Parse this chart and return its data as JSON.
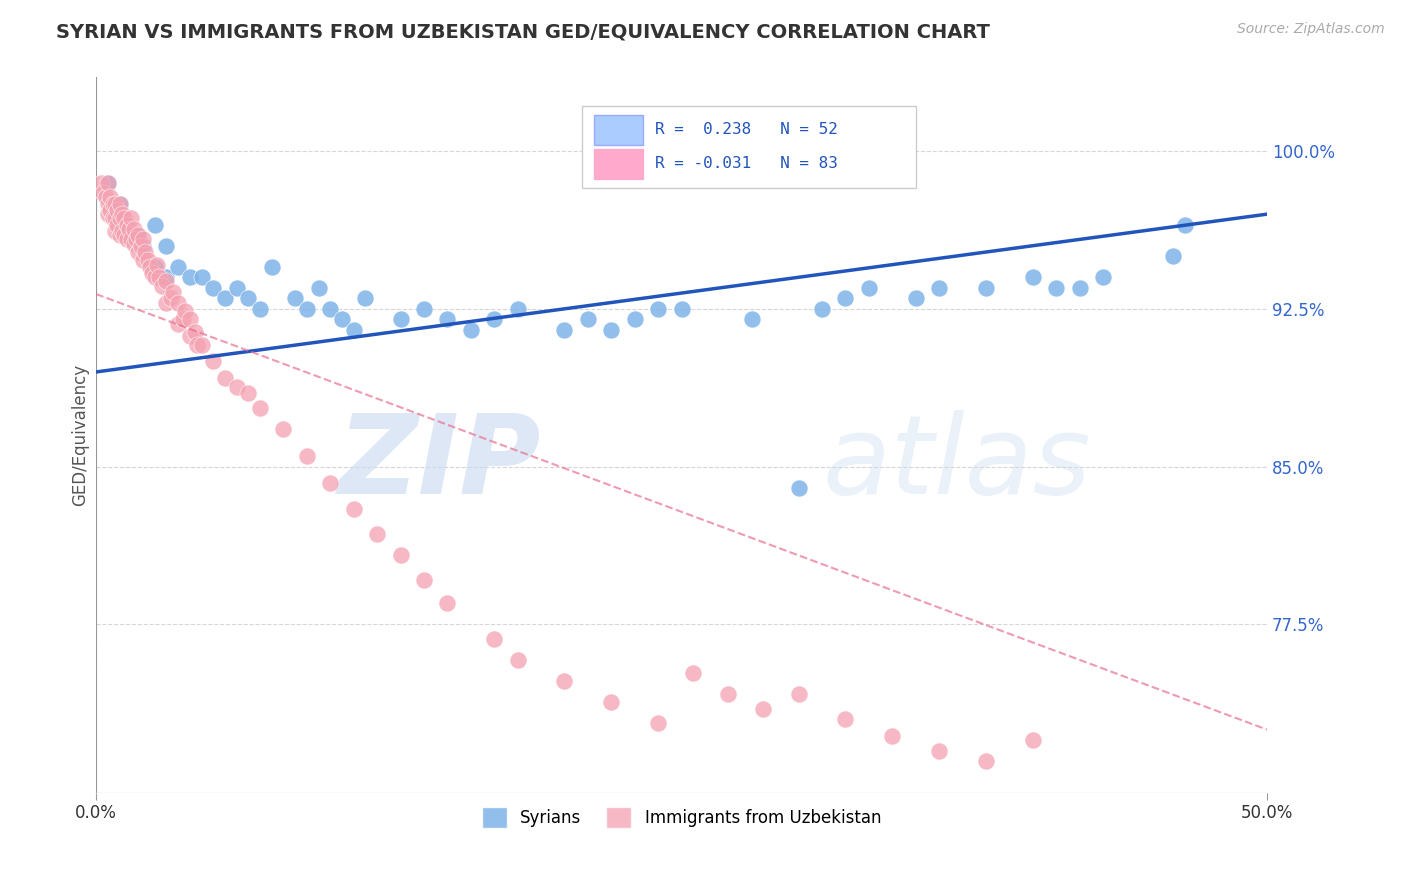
{
  "title": "SYRIAN VS IMMIGRANTS FROM UZBEKISTAN GED/EQUIVALENCY CORRELATION CHART",
  "source": "Source: ZipAtlas.com",
  "ylabel": "GED/Equivalency",
  "ytick_labels": [
    "100.0%",
    "92.5%",
    "85.0%",
    "77.5%"
  ],
  "ytick_values": [
    1.0,
    0.925,
    0.85,
    0.775
  ],
  "xmin": 0.0,
  "xmax": 0.5,
  "ymin": 0.695,
  "ymax": 1.035,
  "blue_color": "#7EB3E8",
  "pink_color": "#F4A0B0",
  "blue_line_color": "#2255BB",
  "pink_line_color": "#E87090",
  "blue_r": 0.238,
  "blue_n": 52,
  "pink_r": -0.031,
  "pink_n": 83,
  "blue_line_x0": 0.0,
  "blue_line_y0": 0.895,
  "blue_line_x1": 0.5,
  "blue_line_y1": 0.97,
  "pink_line_x0": 0.0,
  "pink_line_y0": 0.932,
  "pink_line_x1": 0.5,
  "pink_line_y1": 0.725,
  "blue_points_x": [
    0.005,
    0.01,
    0.012,
    0.015,
    0.018,
    0.02,
    0.025,
    0.025,
    0.03,
    0.03,
    0.035,
    0.04,
    0.045,
    0.05,
    0.055,
    0.06,
    0.065,
    0.07,
    0.075,
    0.085,
    0.09,
    0.095,
    0.1,
    0.105,
    0.11,
    0.115,
    0.13,
    0.14,
    0.15,
    0.16,
    0.17,
    0.18,
    0.2,
    0.21,
    0.22,
    0.23,
    0.24,
    0.25,
    0.28,
    0.3,
    0.31,
    0.32,
    0.33,
    0.35,
    0.36,
    0.38,
    0.4,
    0.41,
    0.42,
    0.43,
    0.46,
    0.465
  ],
  "blue_points_y": [
    0.985,
    0.975,
    0.965,
    0.96,
    0.96,
    0.955,
    0.965,
    0.945,
    0.955,
    0.94,
    0.945,
    0.94,
    0.94,
    0.935,
    0.93,
    0.935,
    0.93,
    0.925,
    0.945,
    0.93,
    0.925,
    0.935,
    0.925,
    0.92,
    0.915,
    0.93,
    0.92,
    0.925,
    0.92,
    0.915,
    0.92,
    0.925,
    0.915,
    0.92,
    0.915,
    0.92,
    0.925,
    0.925,
    0.92,
    0.84,
    0.925,
    0.93,
    0.935,
    0.93,
    0.935,
    0.935,
    0.94,
    0.935,
    0.935,
    0.94,
    0.95,
    0.965
  ],
  "pink_points_x": [
    0.002,
    0.003,
    0.004,
    0.005,
    0.005,
    0.005,
    0.006,
    0.006,
    0.007,
    0.007,
    0.008,
    0.008,
    0.008,
    0.009,
    0.009,
    0.01,
    0.01,
    0.01,
    0.011,
    0.011,
    0.012,
    0.012,
    0.013,
    0.013,
    0.014,
    0.015,
    0.015,
    0.016,
    0.016,
    0.017,
    0.018,
    0.018,
    0.019,
    0.02,
    0.02,
    0.021,
    0.022,
    0.023,
    0.024,
    0.025,
    0.026,
    0.027,
    0.028,
    0.03,
    0.03,
    0.032,
    0.033,
    0.035,
    0.035,
    0.037,
    0.038,
    0.04,
    0.04,
    0.042,
    0.043,
    0.045,
    0.05,
    0.055,
    0.06,
    0.065,
    0.07,
    0.08,
    0.09,
    0.1,
    0.11,
    0.12,
    0.13,
    0.14,
    0.15,
    0.17,
    0.18,
    0.2,
    0.22,
    0.24,
    0.255,
    0.27,
    0.285,
    0.3,
    0.32,
    0.34,
    0.36,
    0.38,
    0.4
  ],
  "pink_points_y": [
    0.985,
    0.98,
    0.978,
    0.985,
    0.975,
    0.97,
    0.978,
    0.972,
    0.975,
    0.968,
    0.975,
    0.968,
    0.962,
    0.972,
    0.965,
    0.975,
    0.968,
    0.96,
    0.97,
    0.962,
    0.968,
    0.96,
    0.965,
    0.958,
    0.963,
    0.968,
    0.958,
    0.963,
    0.956,
    0.958,
    0.96,
    0.952,
    0.955,
    0.958,
    0.948,
    0.952,
    0.948,
    0.945,
    0.942,
    0.94,
    0.946,
    0.94,
    0.936,
    0.938,
    0.928,
    0.93,
    0.933,
    0.928,
    0.918,
    0.92,
    0.924,
    0.92,
    0.912,
    0.914,
    0.908,
    0.908,
    0.9,
    0.892,
    0.888,
    0.885,
    0.878,
    0.868,
    0.855,
    0.842,
    0.83,
    0.818,
    0.808,
    0.796,
    0.785,
    0.768,
    0.758,
    0.748,
    0.738,
    0.728,
    0.752,
    0.742,
    0.735,
    0.742,
    0.73,
    0.722,
    0.715,
    0.71,
    0.72
  ]
}
